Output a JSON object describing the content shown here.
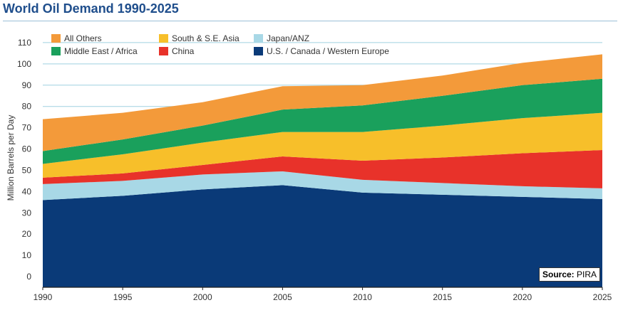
{
  "chart_data": {
    "type": "area",
    "stacked": true,
    "title": "World Oil Demand 1990-2025",
    "ylabel": "Million Barrels per Day",
    "xlabel": "",
    "x": [
      1990,
      1995,
      2000,
      2005,
      2010,
      2015,
      2020,
      2025
    ],
    "xlim": [
      1990,
      2025
    ],
    "ylim": [
      -5,
      118
    ],
    "yticks": [
      0,
      10,
      20,
      30,
      40,
      50,
      60,
      70,
      80,
      90,
      100,
      110
    ],
    "legend_placement": "top-left",
    "grid": true,
    "series": [
      {
        "name": "U.S. / Canada / Western Europe",
        "color": "#0a3a78",
        "values": [
          36,
          38,
          41,
          43,
          39.5,
          38.5,
          37.5,
          36.5
        ]
      },
      {
        "name": "Japan/ANZ",
        "color": "#a8d8e6",
        "values": [
          7.5,
          7,
          7,
          6.5,
          6,
          5.5,
          5,
          5
        ]
      },
      {
        "name": "China",
        "color": "#e8322a",
        "values": [
          3,
          3.5,
          4.5,
          7,
          9,
          12,
          15.5,
          18
        ]
      },
      {
        "name": "South & S.E. Asia",
        "color": "#f7bf2a",
        "values": [
          6.5,
          9,
          10.5,
          11.5,
          13.5,
          15,
          16.5,
          17.5
        ]
      },
      {
        "name": "Middle East / Africa",
        "color": "#1aa05c",
        "values": [
          6,
          7,
          8,
          10.5,
          12.5,
          14,
          15.5,
          16
        ]
      },
      {
        "name": "All Others",
        "color": "#f39a3a",
        "values": [
          15,
          12.5,
          11,
          11,
          9.5,
          9.5,
          10.5,
          11.5
        ]
      }
    ],
    "source_label": "Source:",
    "source_value": "PIRA"
  }
}
